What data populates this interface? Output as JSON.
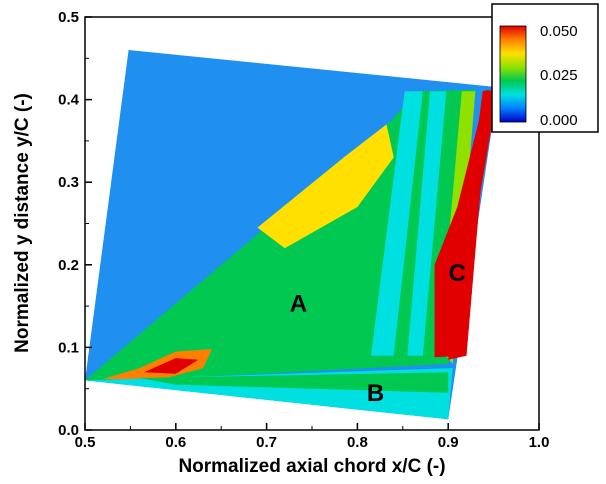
{
  "chart_data": {
    "type": "heatmap",
    "xlabel": "Normalized axial chord x/C (-)",
    "ylabel": "Normalized y distance y/C (-)",
    "xlim": [
      0.5,
      1.0
    ],
    "ylim": [
      0.0,
      0.5
    ],
    "x_ticks": [
      "0.5",
      "0.6",
      "0.7",
      "0.8",
      "0.9",
      "1.0"
    ],
    "y_ticks": [
      "0.0",
      "0.1",
      "0.2",
      "0.3",
      "0.4",
      "0.5"
    ],
    "colorbar": {
      "min": 0.0,
      "max": 0.05,
      "tick_labels": [
        "0.050",
        "0.025",
        "0.000"
      ],
      "colors": [
        "#0000c8",
        "#0080ff",
        "#00e0e0",
        "#00c850",
        "#90e000",
        "#ffe000",
        "#ff8000",
        "#e00000"
      ]
    },
    "background_color": "#1f8ff0",
    "regions": [
      {
        "label": "A",
        "x": 0.735,
        "y": 0.153,
        "level": 0.028
      },
      {
        "label": "B",
        "x": 0.82,
        "y": 0.045,
        "level": 0.014
      },
      {
        "label": "C",
        "x": 0.91,
        "y": 0.19,
        "level": 0.05
      }
    ],
    "domain_quad": [
      [
        0.548,
        0.46
      ],
      [
        0.955,
        0.415
      ],
      [
        0.9,
        0.013
      ],
      [
        0.5,
        0.06
      ]
    ],
    "fields": [
      {
        "name": "wedge",
        "level": 0.022,
        "polygon": [
          [
            0.5,
            0.06
          ],
          [
            0.838,
            0.375
          ],
          [
            0.865,
            0.41
          ],
          [
            0.93,
            0.412
          ],
          [
            0.9,
            0.08
          ],
          [
            0.55,
            0.06
          ]
        ]
      },
      {
        "name": "upper-hot-band",
        "level": 0.036,
        "polygon": [
          [
            0.69,
            0.245
          ],
          [
            0.785,
            0.33
          ],
          [
            0.832,
            0.37
          ],
          [
            0.84,
            0.33
          ],
          [
            0.8,
            0.27
          ],
          [
            0.72,
            0.22
          ]
        ]
      },
      {
        "name": "cyan-streak-1",
        "level": 0.013,
        "polygon": [
          [
            0.852,
            0.41
          ],
          [
            0.872,
            0.41
          ],
          [
            0.84,
            0.09
          ],
          [
            0.815,
            0.09
          ]
        ]
      },
      {
        "name": "cyan-streak-2",
        "level": 0.011,
        "polygon": [
          [
            0.88,
            0.41
          ],
          [
            0.898,
            0.41
          ],
          [
            0.872,
            0.09
          ],
          [
            0.855,
            0.09
          ]
        ]
      },
      {
        "name": "wake-core",
        "level": 0.042,
        "polygon": [
          [
            0.52,
            0.062
          ],
          [
            0.56,
            0.075
          ],
          [
            0.6,
            0.095
          ],
          [
            0.64,
            0.098
          ],
          [
            0.63,
            0.075
          ],
          [
            0.58,
            0.06
          ]
        ]
      },
      {
        "name": "wake-tip",
        "level": 0.05,
        "polygon": [
          [
            0.565,
            0.07
          ],
          [
            0.6,
            0.087
          ],
          [
            0.625,
            0.085
          ],
          [
            0.6,
            0.068
          ]
        ]
      },
      {
        "name": "lower-band",
        "level": 0.016,
        "polygon": [
          [
            0.5,
            0.06
          ],
          [
            0.905,
            0.075
          ],
          [
            0.9,
            0.013
          ]
        ]
      },
      {
        "name": "inner-band",
        "level": 0.021,
        "polygon": [
          [
            0.56,
            0.063
          ],
          [
            0.9,
            0.07
          ],
          [
            0.9,
            0.045
          ],
          [
            0.6,
            0.055
          ]
        ]
      },
      {
        "name": "green-rim",
        "level": 0.027,
        "polygon": [
          [
            0.905,
            0.08
          ],
          [
            0.93,
            0.41
          ],
          [
            0.915,
            0.41
          ],
          [
            0.89,
            0.1
          ]
        ]
      },
      {
        "name": "trailing-edge-red",
        "level": 0.05,
        "polygon": [
          [
            0.9,
            0.085
          ],
          [
            0.938,
            0.41
          ],
          [
            0.945,
            0.412
          ],
          [
            0.92,
            0.09
          ]
        ]
      },
      {
        "name": "red-region",
        "level": 0.05,
        "polygon": [
          [
            0.9,
            0.09
          ],
          [
            0.925,
            0.26
          ],
          [
            0.945,
            0.41
          ],
          [
            0.955,
            0.415
          ],
          [
            0.905,
            0.088
          ],
          [
            0.9,
            0.088
          ]
        ]
      },
      {
        "name": "red-region-body",
        "level": 0.05,
        "polygon": [
          [
            0.885,
            0.088
          ],
          [
            0.885,
            0.2
          ],
          [
            0.91,
            0.27
          ],
          [
            0.935,
            0.38
          ],
          [
            0.945,
            0.412
          ],
          [
            0.92,
            0.09
          ]
        ]
      }
    ]
  }
}
